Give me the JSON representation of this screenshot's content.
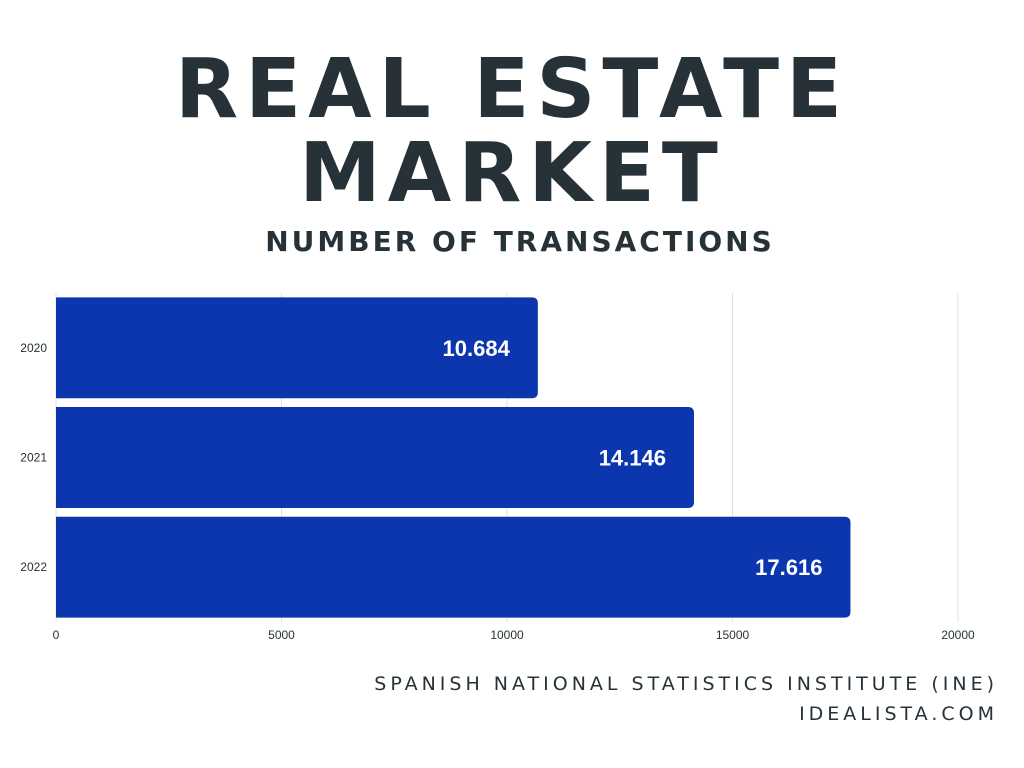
{
  "header": {
    "title_line1": "REAL ESTATE",
    "title_line2": "MARKET",
    "subtitle": "NUMBER OF TRANSACTIONS"
  },
  "chart_data": {
    "type": "bar",
    "orientation": "horizontal",
    "categories": [
      "2020",
      "2021",
      "2022"
    ],
    "values": [
      10684,
      14146,
      17616
    ],
    "data_labels": [
      "10.684",
      "14.146",
      "17.616"
    ],
    "x_ticks": [
      0,
      5000,
      10000,
      15000,
      20000
    ],
    "xlim": [
      0,
      20000
    ],
    "xlabel": "",
    "ylabel": "",
    "grid": true,
    "colors": {
      "bar": "#0c36ae",
      "grid": "#e0e0e0",
      "axis_text": "#263238",
      "data_label": "#ffffff"
    }
  },
  "footer": {
    "source_line1": "SPANISH NATIONAL STATISTICS INSTITUTE (INE)",
    "source_line2": "IDEALISTA.COM"
  }
}
